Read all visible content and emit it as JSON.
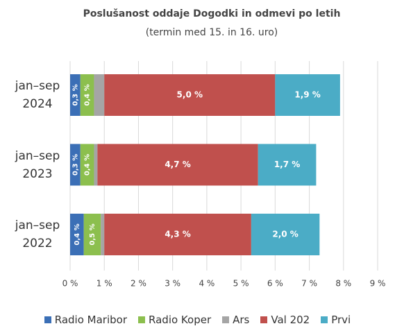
{
  "chart_data": {
    "type": "stacked-bar-horizontal",
    "title": "Poslušanost oddaje Dogodki in odmevi po letih",
    "subtitle": "(termin med 15. in 16. uro)",
    "categories": [
      "jan–sep 2024",
      "jan–sep 2023",
      "jan–sep 2022"
    ],
    "series": [
      {
        "name": "Radio Maribor",
        "color": "#3b6fb6",
        "values": [
          0.3,
          0.3,
          0.4
        ],
        "value_labels": [
          "0,3 %",
          "0,3 %",
          "0,4 %"
        ]
      },
      {
        "name": "Radio Koper",
        "color": "#8cbf4e",
        "values": [
          0.4,
          0.4,
          0.5
        ],
        "value_labels": [
          "0,4 %",
          "0,4 %",
          "0,5 %"
        ]
      },
      {
        "name": "Ars",
        "color": "#a5a5a5",
        "values": [
          0.3,
          0.1,
          0.1
        ]
      },
      {
        "name": "Val 202",
        "color": "#c0504d",
        "values": [
          5.0,
          4.7,
          4.3
        ],
        "value_labels": [
          "5,0 %",
          "4,7 %",
          "4,3 %"
        ]
      },
      {
        "name": "Prvi",
        "color": "#4bacc6",
        "values": [
          1.9,
          1.7,
          2.0
        ],
        "value_labels": [
          "1,9 %",
          "1,7 %",
          "2,0 %"
        ]
      }
    ],
    "xlim": [
      0,
      9
    ],
    "xticks": [
      {
        "value": 0,
        "label": "0 %"
      },
      {
        "value": 1,
        "label": "1 %"
      },
      {
        "value": 2,
        "label": "2 %"
      },
      {
        "value": 3,
        "label": "3 %"
      },
      {
        "value": 4,
        "label": "4 %"
      },
      {
        "value": 5,
        "label": "5 %"
      },
      {
        "value": 6,
        "label": "6 %"
      },
      {
        "value": 7,
        "label": "7 %"
      },
      {
        "value": 8,
        "label": "8 %"
      },
      {
        "value": 9,
        "label": "9 %"
      }
    ],
    "grid": true,
    "legend": "bottom"
  }
}
